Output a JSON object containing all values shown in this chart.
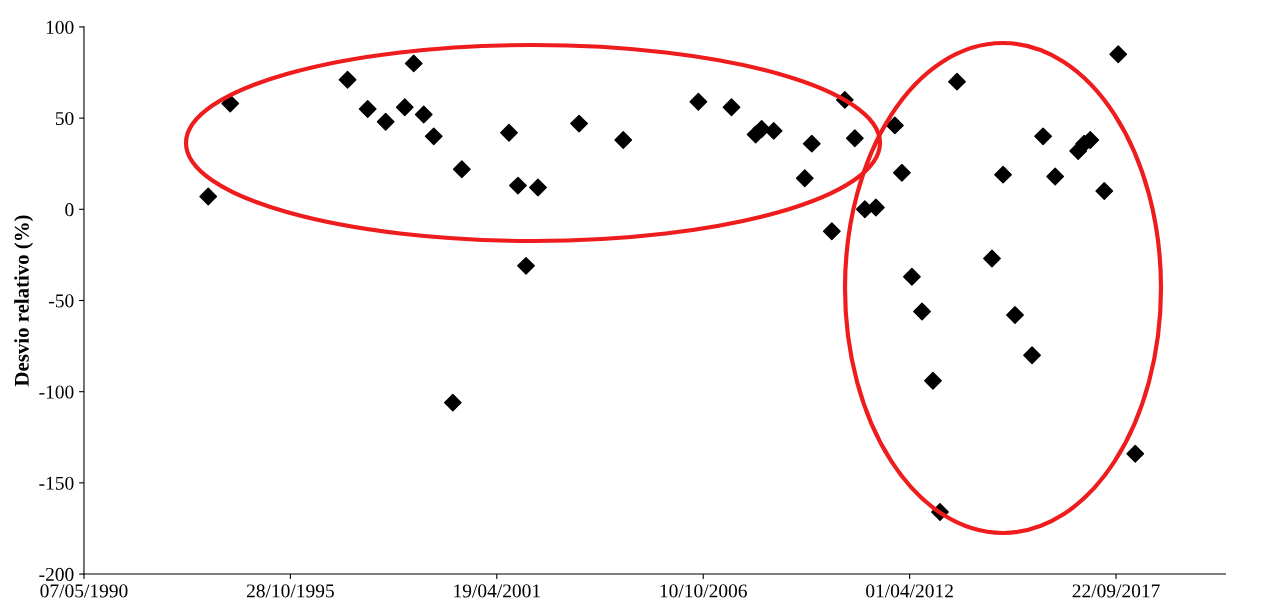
{
  "chart_data": {
    "type": "scatter",
    "ylabel": "Desvio relativo (%)",
    "marker": "diamond",
    "grid": false,
    "legend": false,
    "xlim": [
      "1990-05-07",
      "2020-08-17"
    ],
    "xticks": [
      {
        "value": "1990-05-07",
        "label": "07/05/1990"
      },
      {
        "value": "1995-10-28",
        "label": "28/10/1995"
      },
      {
        "value": "2001-04-19",
        "label": "19/04/2001"
      },
      {
        "value": "2006-10-10",
        "label": "10/10/2006"
      },
      {
        "value": "2012-04-01",
        "label": "01/04/2012"
      },
      {
        "value": "2017-09-22",
        "label": "22/09/2017"
      }
    ],
    "ylim": [
      -200,
      100
    ],
    "yticks": [
      {
        "value": -200,
        "label": "-200"
      },
      {
        "value": -150,
        "label": "-150"
      },
      {
        "value": -100,
        "label": "-100"
      },
      {
        "value": -50,
        "label": "-50"
      },
      0,
      50,
      100
    ],
    "series": [
      {
        "color": "#000000",
        "x": [
          "1993-08-23",
          "1994-03-24",
          "1997-05-04",
          "1997-11-15",
          "1998-05-08",
          "1998-11-09",
          "1999-02-04",
          "1999-05-12",
          "1999-08-17",
          "2000-02-18",
          "2000-05-15",
          "2001-08-15",
          "2001-11-10",
          "2002-01-27",
          "2002-05-23",
          "2003-06-25",
          "2004-08-26",
          "2006-08-24",
          "2007-07-11",
          "2008-03-01",
          "2008-04-28",
          "2008-08-23",
          "2009-06-20",
          "2009-08-27",
          "2010-03-09",
          "2010-07-13",
          "2010-10-18",
          "2011-01-23",
          "2011-05-10",
          "2011-11-10",
          "2012-01-17",
          "2012-04-23",
          "2012-07-30",
          "2012-11-13",
          "2013-01-20",
          "2013-07-04",
          "2014-06-08",
          "2014-09-23",
          "2015-01-17",
          "2015-07-01",
          "2015-10-16",
          "2016-02-10",
          "2016-09-20",
          "2016-11-17",
          "2017-01-15",
          "2017-05-31",
          "2017-10-13",
          "2018-03-27"
        ],
        "values": [
          7,
          58,
          71,
          55,
          48,
          56,
          80,
          52,
          40,
          -106,
          22,
          42,
          13,
          -31,
          12,
          47,
          38,
          59,
          56,
          41,
          44,
          43,
          17,
          36,
          -12,
          60,
          39,
          0,
          1,
          46,
          20,
          -37,
          -56,
          -94,
          -166,
          70,
          -27,
          19,
          -58,
          -80,
          40,
          18,
          32,
          36,
          38,
          10,
          85,
          -134
        ]
      }
    ]
  }
}
